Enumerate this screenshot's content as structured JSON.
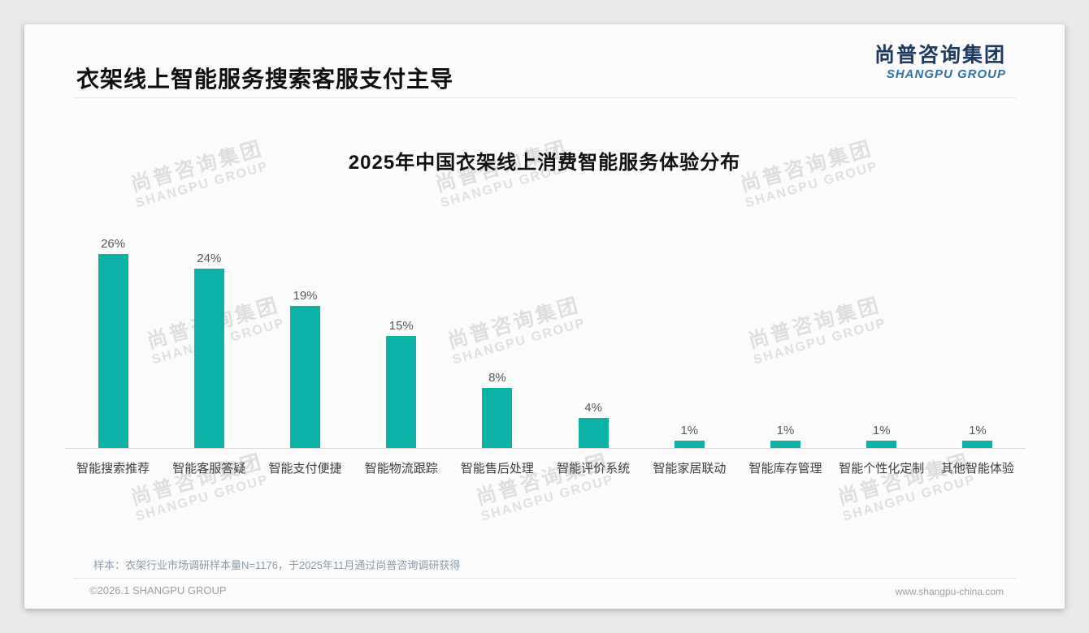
{
  "page": {
    "title": "衣架线上智能服务搜索客服支付主导",
    "logo": {
      "zh": "尚普咨询集团",
      "en": "SHANGPU GROUP"
    },
    "watermark": {
      "line1": "尚普咨询集团",
      "line2": "SHANGPU GROUP"
    },
    "footnote": "样本：衣架行业市场调研样本量N=1176，于2025年11月通过尚普咨询调研获得",
    "footer": {
      "left": "©2026.1 SHANGPU GROUP",
      "right": "www.shangpu-china.com"
    }
  },
  "theme": {
    "bar_color": "#0cb2a6",
    "logo_navy": "#1f3a60",
    "logo_blue": "#2e73a9"
  },
  "chart_data": {
    "type": "bar",
    "title": "2025年中国衣架线上消费智能服务体验分布",
    "categories": [
      "智能搜索推荐",
      "智能客服答疑",
      "智能支付便捷",
      "智能物流跟踪",
      "智能售后处理",
      "智能评价系统",
      "智能家居联动",
      "智能库存管理",
      "智能个性化定制",
      "其他智能体验"
    ],
    "values": [
      26,
      24,
      19,
      15,
      8,
      4,
      1,
      1,
      1,
      1
    ],
    "unit": "%",
    "data_labels": true,
    "xlabel": "",
    "ylabel": "",
    "ylim": [
      0,
      28
    ],
    "grid": false,
    "legend": "none"
  }
}
